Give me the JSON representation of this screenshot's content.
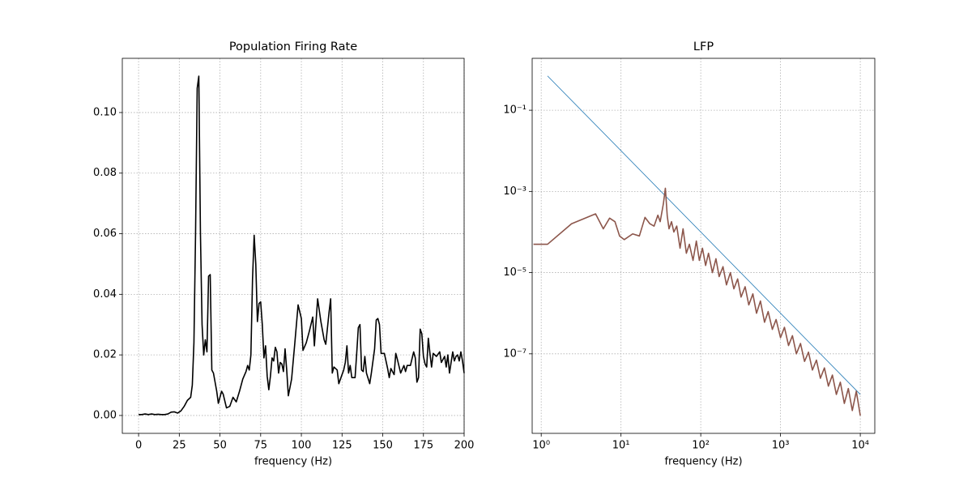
{
  "chart_data": [
    {
      "type": "line",
      "title": "Population Firing Rate",
      "xlabel": "frequency (Hz)",
      "color": "#000000",
      "grid": true,
      "xlim": [
        -10,
        200
      ],
      "ylim": [
        -0.0059,
        0.1179
      ],
      "xticks": [
        0,
        25,
        50,
        75,
        100,
        125,
        150,
        175,
        200
      ],
      "yticks": [
        {
          "value": 0,
          "label": "0.00"
        },
        {
          "value": 0.02,
          "label": "0.02"
        },
        {
          "value": 0.04,
          "label": "0.04"
        },
        {
          "value": 0.06,
          "label": "0.06"
        },
        {
          "value": 0.08,
          "label": "0.08"
        },
        {
          "value": 0.1,
          "label": "0.10"
        }
      ],
      "x": [
        0,
        2,
        4,
        6,
        8,
        10,
        12,
        14,
        16,
        18,
        20,
        22,
        24,
        26,
        28,
        30,
        32,
        33,
        34,
        35,
        36,
        37,
        38,
        39,
        40,
        41,
        42,
        43,
        44,
        45,
        46,
        48,
        49,
        51,
        52,
        54,
        56,
        58,
        60,
        62,
        64,
        66,
        67,
        68,
        69,
        70,
        71,
        72,
        73,
        74,
        75,
        76,
        77,
        78,
        79,
        80,
        81,
        82,
        83,
        84,
        85,
        86,
        87,
        88,
        89,
        90,
        91,
        92,
        94,
        96,
        98,
        100,
        101,
        103,
        105,
        107,
        108,
        110,
        112,
        114,
        115,
        117,
        118,
        119,
        120,
        122,
        123,
        125,
        126,
        127,
        128,
        129,
        130,
        131,
        133,
        134,
        135,
        136,
        137,
        138,
        139,
        140,
        142,
        143,
        145,
        146,
        147,
        148,
        149,
        151,
        153,
        154,
        155,
        157,
        158,
        159,
        161,
        163,
        164,
        165,
        167,
        169,
        170,
        171,
        172,
        173,
        174,
        175,
        176,
        177,
        178,
        179,
        180,
        181,
        183,
        185,
        186,
        188,
        189,
        190,
        191,
        193,
        194,
        195,
        196,
        197,
        198,
        199,
        200
      ],
      "values": [
        0.0003,
        0.0003,
        0.0005,
        0.0003,
        0.0005,
        0.0003,
        0.0004,
        0.0003,
        0.0003,
        0.0005,
        0.0011,
        0.0012,
        0.0008,
        0.0015,
        0.003,
        0.005,
        0.006,
        0.01,
        0.024,
        0.06,
        0.108,
        0.112,
        0.06,
        0.03,
        0.02,
        0.025,
        0.021,
        0.046,
        0.0465,
        0.015,
        0.014,
        0.008,
        0.004,
        0.008,
        0.007,
        0.0025,
        0.003,
        0.006,
        0.0045,
        0.008,
        0.012,
        0.0145,
        0.0165,
        0.015,
        0.02,
        0.045,
        0.0595,
        0.05,
        0.031,
        0.037,
        0.0375,
        0.03,
        0.019,
        0.023,
        0.013,
        0.0085,
        0.013,
        0.019,
        0.018,
        0.0225,
        0.021,
        0.014,
        0.0175,
        0.017,
        0.0145,
        0.022,
        0.015,
        0.0065,
        0.012,
        0.024,
        0.0365,
        0.032,
        0.0215,
        0.024,
        0.028,
        0.0325,
        0.023,
        0.0385,
        0.031,
        0.025,
        0.0235,
        0.034,
        0.0385,
        0.014,
        0.016,
        0.015,
        0.0105,
        0.0135,
        0.015,
        0.0175,
        0.023,
        0.014,
        0.0165,
        0.0125,
        0.0125,
        0.0205,
        0.029,
        0.03,
        0.015,
        0.0145,
        0.0195,
        0.014,
        0.0105,
        0.014,
        0.022,
        0.0315,
        0.032,
        0.03,
        0.0205,
        0.0205,
        0.0155,
        0.0125,
        0.0155,
        0.0135,
        0.0205,
        0.0185,
        0.014,
        0.0165,
        0.0145,
        0.0165,
        0.0165,
        0.021,
        0.019,
        0.011,
        0.0125,
        0.0285,
        0.027,
        0.0195,
        0.017,
        0.016,
        0.0255,
        0.0205,
        0.016,
        0.0205,
        0.0195,
        0.021,
        0.0175,
        0.0195,
        0.016,
        0.02,
        0.014,
        0.021,
        0.018,
        0.0195,
        0.02,
        0.018,
        0.021,
        0.018,
        0.014
      ]
    },
    {
      "type": "line",
      "title": "LFP",
      "xlabel": "frequency (Hz)",
      "grid": true,
      "xscale": "log",
      "yscale": "log",
      "xlim": [
        0.77,
        15200
      ],
      "ylim": [
        1.1e-09,
        1.9
      ],
      "xticks": [
        {
          "value": 1,
          "label": "10⁰"
        },
        {
          "value": 10,
          "label": "10¹"
        },
        {
          "value": 100,
          "label": "10²"
        },
        {
          "value": 1000,
          "label": "10³"
        },
        {
          "value": 10000,
          "label": "10⁴"
        }
      ],
      "yticks": [
        {
          "value": 1e-07,
          "label": "10⁻⁷"
        },
        {
          "value": 1e-05,
          "label": "10⁻⁵"
        },
        {
          "value": 0.001,
          "label": "10⁻³"
        },
        {
          "value": 0.1,
          "label": "10⁻¹"
        }
      ],
      "series": [
        {
          "color": "#1f77b4",
          "x": [
            1.2,
            10000
          ],
          "values": [
            0.7,
            1e-08
          ]
        },
        {
          "color": "#8c564b",
          "x": [
            0.8,
            1.2,
            2.4,
            4.8,
            6,
            7.2,
            8.4,
            9.6,
            11,
            14,
            17,
            20,
            23,
            26,
            29,
            31,
            34,
            36,
            38,
            40,
            43,
            46,
            50,
            55,
            60,
            66,
            72,
            80,
            88,
            96,
            105,
            115,
            125,
            140,
            155,
            170,
            190,
            210,
            235,
            260,
            290,
            320,
            360,
            400,
            450,
            500,
            560,
            630,
            700,
            790,
            880,
            1000,
            1120,
            1260,
            1410,
            1580,
            1780,
            2000,
            2240,
            2510,
            2820,
            3160,
            3550,
            3980,
            4470,
            5010,
            5620,
            6310,
            7080,
            7940,
            8910,
            10000
          ],
          "values": [
            5e-05,
            5e-05,
            0.00016,
            0.00028,
            0.00012,
            0.00022,
            0.00018,
            8e-05,
            6.5e-05,
            9e-05,
            8e-05,
            0.00023,
            0.00016,
            0.00014,
            0.00026,
            0.00018,
            0.0005,
            0.0012,
            0.00025,
            0.00012,
            0.00018,
            0.0001,
            0.00014,
            4e-05,
            0.00012,
            3e-05,
            5e-05,
            2e-05,
            6e-05,
            2e-05,
            4e-05,
            1.5e-05,
            3e-05,
            1e-05,
            2.2e-05,
            8e-06,
            1.4e-05,
            5e-06,
            1e-05,
            4e-06,
            7e-06,
            2.5e-06,
            4.5e-06,
            1.6e-06,
            3e-06,
            1e-06,
            2e-06,
            6e-07,
            1.1e-06,
            4e-07,
            7e-07,
            2.5e-07,
            4.5e-07,
            1.6e-07,
            2.8e-07,
            1e-07,
            1.8e-07,
            6.5e-08,
            1.1e-07,
            4e-08,
            7e-08,
            2.5e-08,
            4.5e-08,
            1.6e-08,
            3e-08,
            1e-08,
            2e-08,
            6e-09,
            1.4e-08,
            4e-09,
            1.2e-08,
            3e-09
          ]
        }
      ]
    }
  ]
}
